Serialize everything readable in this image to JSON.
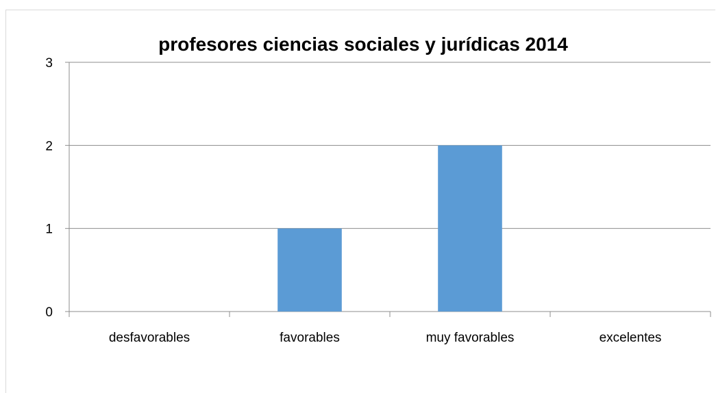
{
  "chart_data": {
    "type": "bar",
    "title": "profesores ciencias sociales y jurídicas 2014",
    "categories": [
      "desfavorables",
      "favorables",
      "muy favorables",
      "excelentes"
    ],
    "values": [
      0,
      1,
      2,
      0
    ],
    "ylim": [
      0,
      3
    ],
    "yticks": [
      "0",
      "1",
      "2",
      "3"
    ],
    "grid": true,
    "legend": "none",
    "bar_color": "#5b9bd5"
  }
}
